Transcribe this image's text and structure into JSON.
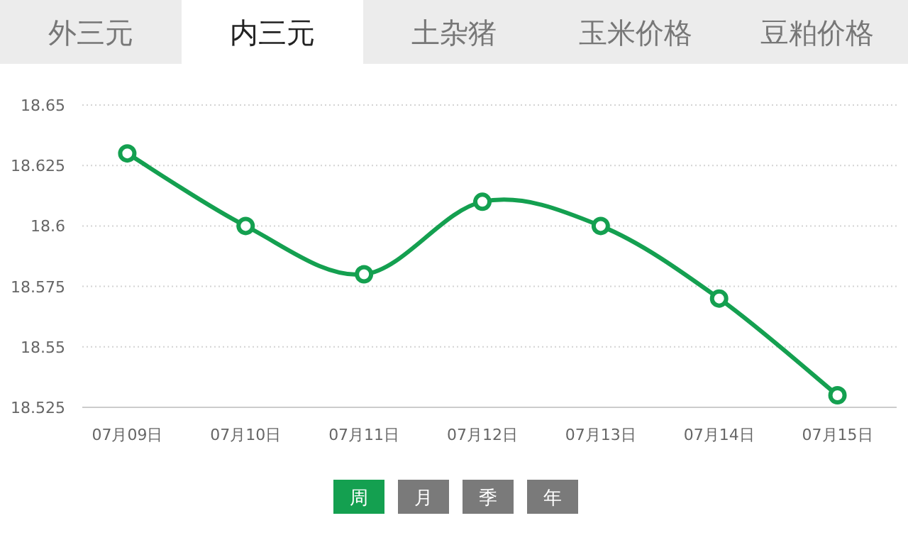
{
  "chart_data": {
    "type": "line",
    "title": "内三元",
    "annotations": [
      "外三元",
      "土杂猪",
      "玉米价格",
      "豆粕价格",
      "周",
      "月",
      "季",
      "年"
    ],
    "categories": [
      "07月09日",
      "07月10日",
      "07月11日",
      "07月12日",
      "07月13日",
      "07月14日",
      "07月15日"
    ],
    "series": [
      {
        "color": "#14a050",
        "values": [
          18.63,
          18.6,
          18.58,
          18.61,
          18.6,
          18.57,
          18.53
        ]
      }
    ],
    "ylim": [
      18.525,
      18.65
    ],
    "yticks": [
      18.525,
      18.55,
      18.575,
      18.6,
      18.625,
      18.65
    ],
    "grid": "y",
    "marker": "circle"
  }
}
